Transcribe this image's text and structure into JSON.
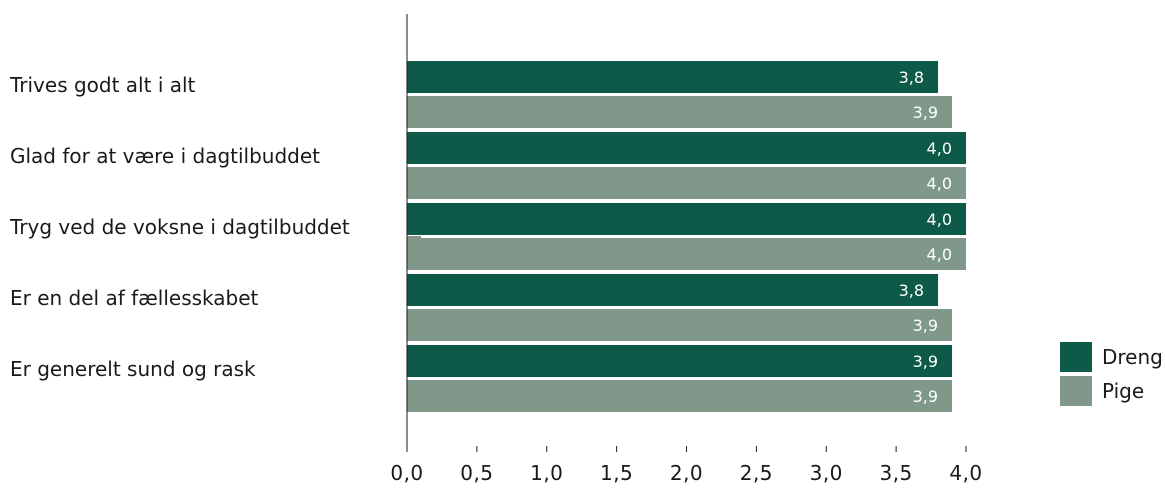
{
  "chart_data": {
    "type": "bar",
    "orientation": "horizontal",
    "categories": [
      "Trives godt alt i alt",
      "Glad for at være i dagtilbuddet",
      "Tryg ved de voksne i dagtilbuddet",
      "Er en del af fællesskabet",
      "Er generelt sund og rask"
    ],
    "series": [
      {
        "name": "Dreng",
        "color": "#0e5a48",
        "values": [
          3.8,
          4.0,
          4.0,
          3.8,
          3.9
        ],
        "value_labels": [
          "3,8",
          "4,0",
          "4,0",
          "3,8",
          "3,9"
        ]
      },
      {
        "name": "Pige",
        "color": "#7f988a",
        "values": [
          3.9,
          4.0,
          4.0,
          3.9,
          3.9
        ],
        "value_labels": [
          "3,9",
          "4,0",
          "4,0",
          "3,9",
          "3,9"
        ]
      }
    ],
    "xlim": [
      0,
      4.0
    ],
    "xticks": [
      0,
      0.5,
      1.0,
      1.5,
      2.0,
      2.5,
      3.0,
      3.5,
      4.0
    ],
    "xtick_labels": [
      "0,0",
      "0,5",
      "1,0",
      "1,5",
      "2,0",
      "2,5",
      "3,0",
      "3,5",
      "4,0"
    ],
    "grid": false,
    "legend_position": "right"
  }
}
